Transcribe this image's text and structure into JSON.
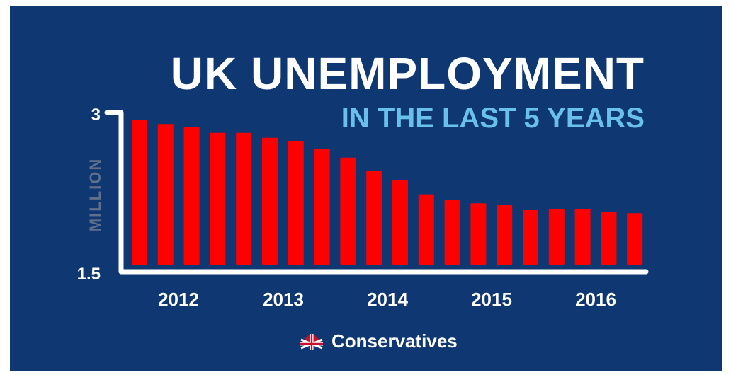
{
  "chart_data": {
    "type": "bar",
    "title": "UK UNEMPLOYMENT",
    "subtitle": "IN THE LAST 5 YEARS",
    "ylabel": "MILLION",
    "ylim": [
      1.5,
      3
    ],
    "ytick_labels": [
      "3",
      "1.5"
    ],
    "xtick_labels": [
      "2012",
      "2013",
      "2014",
      "2015",
      "2016"
    ],
    "values": [
      2.96,
      2.92,
      2.89,
      2.83,
      2.83,
      2.78,
      2.75,
      2.67,
      2.58,
      2.45,
      2.35,
      2.21,
      2.15,
      2.12,
      2.1,
      2.05,
      2.06,
      2.06,
      2.03,
      2.02
    ],
    "bar_color": "#ff0000",
    "axis_color": "#ffffff",
    "grid": false
  },
  "brand": {
    "name": "Conservatives",
    "icon": "union-jack-tree-icon"
  },
  "colors": {
    "background": "#0f3873",
    "title": "#ffffff",
    "subtitle": "#69c0ea",
    "axis_label": "#5f6f8c"
  }
}
